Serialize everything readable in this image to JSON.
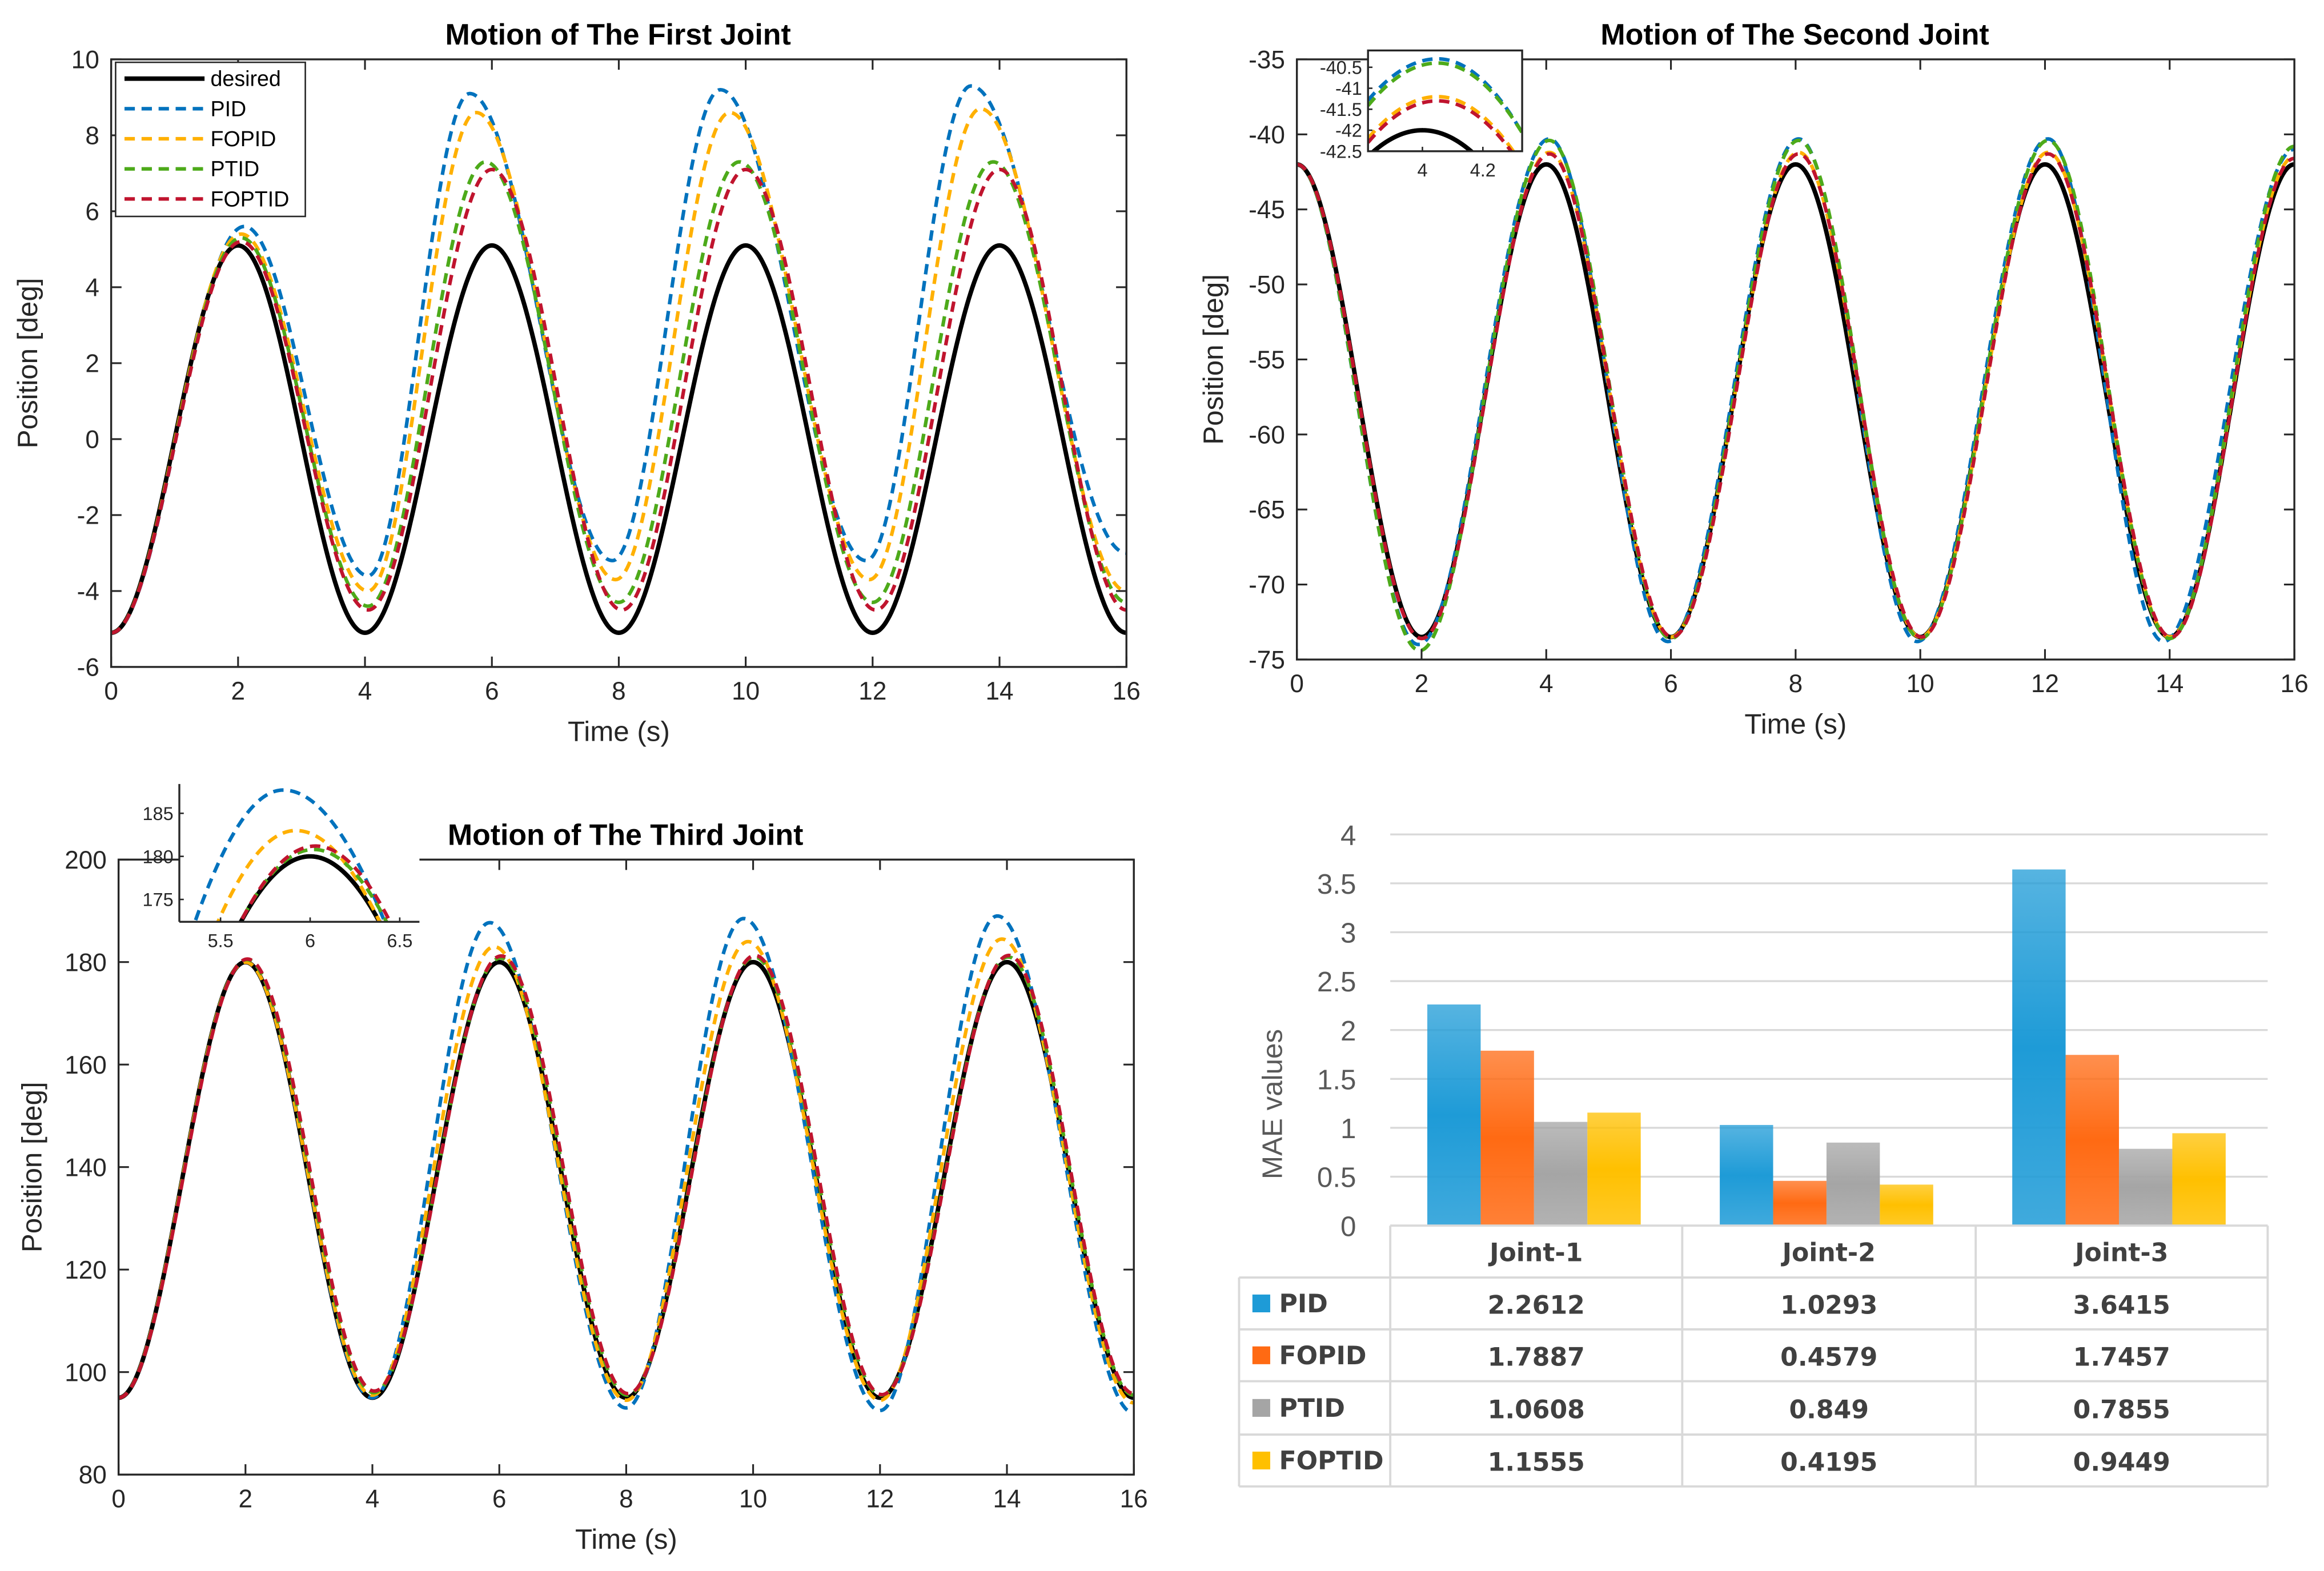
{
  "chart_data": [
    {
      "type": "line",
      "title": "Motion of The First Joint",
      "xlabel": "Time (s)",
      "ylabel": "Position [deg]",
      "xlim": [
        0,
        16
      ],
      "ylim": [
        -6,
        10
      ],
      "xticks": [
        "0",
        "2",
        "4",
        "6",
        "8",
        "10",
        "12",
        "14",
        "16"
      ],
      "yticks": [
        "-6",
        "-4",
        "-2",
        "0",
        "2",
        "4",
        "6",
        "8",
        "10"
      ],
      "legend_position": "top-left",
      "series": [
        {
          "name": "desired",
          "color": "#000000",
          "style": "solid",
          "extrema": [
            [
              0,
              -5.1
            ],
            [
              2,
              5.1
            ],
            [
              4,
              -5.1
            ],
            [
              6,
              5.1
            ],
            [
              8,
              -5.1
            ],
            [
              10,
              5.1
            ],
            [
              12,
              -5.1
            ],
            [
              14,
              5.1
            ],
            [
              16,
              -5.1
            ]
          ]
        },
        {
          "name": "PID",
          "color": "#0072BD",
          "style": "dashed",
          "extrema": [
            [
              0,
              -5.1
            ],
            [
              2.1,
              5.6
            ],
            [
              4.05,
              -3.6
            ],
            [
              5.65,
              9.1
            ],
            [
              7.9,
              -3.2
            ],
            [
              9.6,
              9.2
            ],
            [
              11.9,
              -3.2
            ],
            [
              13.55,
              9.3
            ],
            [
              16,
              -3.0
            ]
          ]
        },
        {
          "name": "FOPID",
          "color": "#FFB000",
          "style": "dashed",
          "extrema": [
            [
              0,
              -5.1
            ],
            [
              2.05,
              5.4
            ],
            [
              4.05,
              -4.0
            ],
            [
              5.75,
              8.6
            ],
            [
              7.95,
              -3.7
            ],
            [
              9.75,
              8.6
            ],
            [
              11.95,
              -3.7
            ],
            [
              13.7,
              8.7
            ],
            [
              16,
              -4.0
            ]
          ]
        },
        {
          "name": "PTID",
          "color": "#4DAA1A",
          "style": "dashed",
          "extrema": [
            [
              0,
              -5.1
            ],
            [
              2.05,
              5.3
            ],
            [
              4.05,
              -4.4
            ],
            [
              5.9,
              7.3
            ],
            [
              8,
              -4.3
            ],
            [
              9.9,
              7.3
            ],
            [
              12,
              -4.3
            ],
            [
              13.9,
              7.3
            ],
            [
              16,
              -4.3
            ]
          ]
        },
        {
          "name": "FOPTID",
          "color": "#C0142E",
          "style": "dashed",
          "extrema": [
            [
              0,
              -5.1
            ],
            [
              2.05,
              5.2
            ],
            [
              4.05,
              -4.5
            ],
            [
              6,
              7.1
            ],
            [
              8.05,
              -4.5
            ],
            [
              10,
              7.1
            ],
            [
              12.05,
              -4.5
            ],
            [
              14,
              7.1
            ],
            [
              16,
              -4.5
            ]
          ]
        }
      ]
    },
    {
      "type": "line",
      "title": "Motion of The Second Joint",
      "xlabel": "Time (s)",
      "ylabel": "Position [deg]",
      "xlim": [
        0,
        16
      ],
      "ylim": [
        -75,
        -35
      ],
      "xticks": [
        "0",
        "2",
        "4",
        "6",
        "8",
        "10",
        "12",
        "14",
        "16"
      ],
      "yticks": [
        "-75",
        "-70",
        "-65",
        "-60",
        "-55",
        "-50",
        "-45",
        "-40",
        "-35"
      ],
      "inset": {
        "xlim": [
          3.82,
          4.33
        ],
        "ylim": [
          -42.5,
          -40.1
        ],
        "xticks": [
          "4",
          "4.2"
        ],
        "yticks": [
          "-42.5",
          "-42",
          "-41.5",
          "-41",
          "-40.5"
        ],
        "position": "top-left"
      },
      "series": [
        {
          "name": "desired",
          "color": "#000000",
          "style": "solid",
          "extrema": [
            [
              0,
              -42
            ],
            [
              2,
              -73.5
            ],
            [
              4,
              -42
            ],
            [
              6,
              -73.5
            ],
            [
              8,
              -42
            ],
            [
              10,
              -73.5
            ],
            [
              12,
              -42
            ],
            [
              14,
              -73.5
            ],
            [
              16,
              -42
            ]
          ]
        },
        {
          "name": "PID",
          "color": "#0072BD",
          "style": "dashed",
          "extrema": [
            [
              0,
              -42
            ],
            [
              1.95,
              -74
            ],
            [
              4.05,
              -40.3
            ],
            [
              5.95,
              -73.8
            ],
            [
              8.05,
              -40.3
            ],
            [
              9.95,
              -73.8
            ],
            [
              12.05,
              -40.3
            ],
            [
              13.9,
              -73.8
            ],
            [
              16,
              -41
            ]
          ]
        },
        {
          "name": "FOPID",
          "color": "#FFB000",
          "style": "dashed",
          "extrema": [
            [
              0,
              -42
            ],
            [
              2,
              -73.6
            ],
            [
              4.05,
              -41.2
            ],
            [
              6,
              -73.5
            ],
            [
              8.05,
              -41.2
            ],
            [
              10,
              -73.5
            ],
            [
              12.05,
              -41.2
            ],
            [
              14,
              -73.5
            ],
            [
              16,
              -41.5
            ]
          ]
        },
        {
          "name": "PTID",
          "color": "#4DAA1A",
          "style": "dashed",
          "extrema": [
            [
              0,
              -42
            ],
            [
              1.97,
              -74.4
            ],
            [
              4.05,
              -40.4
            ],
            [
              6,
              -73.6
            ],
            [
              8.05,
              -40.4
            ],
            [
              10,
              -73.6
            ],
            [
              12.05,
              -40.4
            ],
            [
              14,
              -73.6
            ],
            [
              16,
              -40.8
            ]
          ]
        },
        {
          "name": "FOPTID",
          "color": "#C0142E",
          "style": "dashed",
          "extrema": [
            [
              0,
              -42
            ],
            [
              2,
              -73.6
            ],
            [
              4.05,
              -41.3
            ],
            [
              6.02,
              -73.5
            ],
            [
              8.05,
              -41.3
            ],
            [
              10.02,
              -73.5
            ],
            [
              12.05,
              -41.3
            ],
            [
              14.02,
              -73.5
            ],
            [
              16,
              -41.6
            ]
          ]
        }
      ]
    },
    {
      "type": "line",
      "title": "Motion of The Third Joint",
      "xlabel": "Time (s)",
      "ylabel": "Position [deg]",
      "xlim": [
        0,
        16
      ],
      "ylim": [
        80,
        200
      ],
      "xticks": [
        "0",
        "2",
        "4",
        "6",
        "8",
        "10",
        "12",
        "14",
        "16"
      ],
      "yticks": [
        "80",
        "100",
        "120",
        "140",
        "160",
        "180",
        "200"
      ],
      "inset": {
        "xlim": [
          5.27,
          6.61
        ],
        "ylim": [
          172.4,
          188.4
        ],
        "xticks": [
          "5.5",
          "6",
          "6.5"
        ],
        "yticks": [
          "175",
          "180",
          "185"
        ],
        "position": "top-left"
      },
      "series": [
        {
          "name": "desired",
          "color": "#000000",
          "style": "solid",
          "extrema": [
            [
              0,
              95
            ],
            [
              2,
              180
            ],
            [
              4,
              95
            ],
            [
              6,
              180
            ],
            [
              8,
              95
            ],
            [
              10,
              180
            ],
            [
              12,
              95
            ],
            [
              14,
              180
            ],
            [
              16,
              95
            ]
          ]
        },
        {
          "name": "PID",
          "color": "#0072BD",
          "style": "dashed",
          "extrema": [
            [
              0,
              95
            ],
            [
              2,
              180
            ],
            [
              4,
              95
            ],
            [
              5.85,
              187.7
            ],
            [
              8,
              93
            ],
            [
              9.85,
              188.5
            ],
            [
              12,
              92.5
            ],
            [
              13.85,
              189
            ],
            [
              16,
              92
            ]
          ]
        },
        {
          "name": "FOPID",
          "color": "#FFB000",
          "style": "dashed",
          "extrema": [
            [
              0,
              95
            ],
            [
              2,
              180
            ],
            [
              4,
              95.5
            ],
            [
              5.92,
              183
            ],
            [
              8,
              94.5
            ],
            [
              9.92,
              184
            ],
            [
              12,
              94.5
            ],
            [
              13.92,
              184.5
            ],
            [
              16,
              94
            ]
          ]
        },
        {
          "name": "PTID",
          "color": "#4DAA1A",
          "style": "dashed",
          "extrema": [
            [
              0,
              95
            ],
            [
              2.02,
              180.5
            ],
            [
              4.02,
              96
            ],
            [
              6.02,
              180.8
            ],
            [
              8.02,
              95.5
            ],
            [
              10.02,
              181
            ],
            [
              12.02,
              95.5
            ],
            [
              14.02,
              181
            ],
            [
              16,
              95.5
            ]
          ]
        },
        {
          "name": "FOPTID",
          "color": "#C0142E",
          "style": "dashed",
          "extrema": [
            [
              0,
              95
            ],
            [
              2.03,
              180.6
            ],
            [
              4.03,
              96.3
            ],
            [
              6.03,
              181.2
            ],
            [
              8.03,
              95.8
            ],
            [
              10.03,
              181.3
            ],
            [
              12.03,
              95.6
            ],
            [
              14.03,
              181.3
            ],
            [
              16,
              95.8
            ]
          ]
        }
      ]
    },
    {
      "type": "bar",
      "title": "",
      "xlabel": "",
      "ylabel": "MAE values",
      "ylim": [
        0,
        4
      ],
      "yticks": [
        "0",
        "0.5",
        "1",
        "1.5",
        "2",
        "2.5",
        "3",
        "3.5",
        "4"
      ],
      "grid": true,
      "categories": [
        "Joint-1",
        "Joint-2",
        "Joint-3"
      ],
      "series": [
        {
          "name": "PID",
          "color": "#1E9BD7",
          "values": [
            2.2612,
            1.0293,
            3.6415
          ],
          "labels": [
            "2.2612",
            "1.0293",
            "3.6415"
          ]
        },
        {
          "name": "FOPID",
          "color": "#FF6A13",
          "values": [
            1.7887,
            0.4579,
            1.7457
          ],
          "labels": [
            "1.7887",
            "0.4579",
            "1.7457"
          ]
        },
        {
          "name": "PTID",
          "color": "#A5A5A5",
          "values": [
            1.0608,
            0.849,
            0.7855
          ],
          "labels": [
            "1.0608",
            "0.849",
            "0.7855"
          ]
        },
        {
          "name": "FOPTID",
          "color": "#FFC000",
          "values": [
            1.1555,
            0.4195,
            0.9449
          ],
          "labels": [
            "1.1555",
            "0.4195",
            "0.9449"
          ]
        }
      ]
    }
  ]
}
